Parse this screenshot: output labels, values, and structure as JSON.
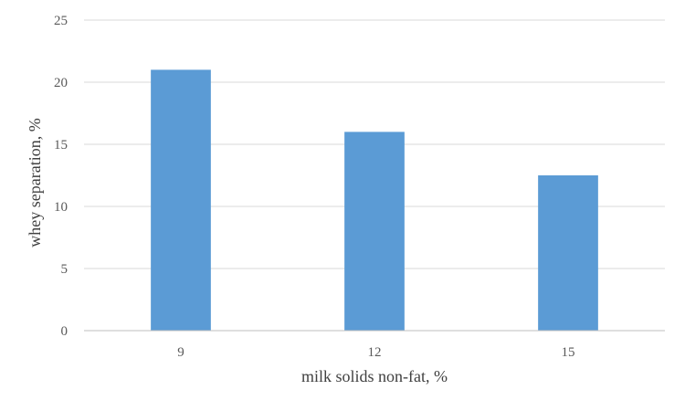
{
  "chart_data": {
    "type": "bar",
    "categories": [
      "9",
      "12",
      "15"
    ],
    "values": [
      21,
      16,
      12.5
    ],
    "title": "",
    "xlabel": "milk solids non-fat, %",
    "ylabel": "whey separation, %",
    "ylim": [
      0,
      25
    ],
    "yticks": [
      0,
      5,
      10,
      15,
      20,
      25
    ],
    "grid": true,
    "legend": "none",
    "bar_color": "#5b9bd5"
  }
}
